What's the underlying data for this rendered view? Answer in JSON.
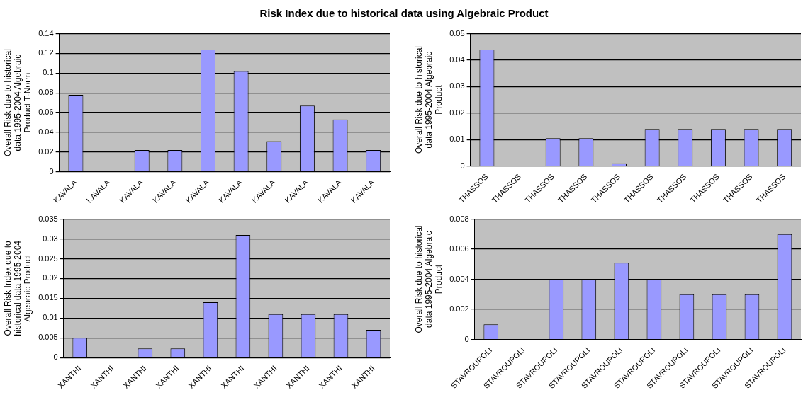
{
  "chart_data": [
    {
      "type": "bar",
      "title": "Risk Index due to historical data using Algebraic Product",
      "ylabel": "Overall Risk due to historical data 1995-2004 Algebraic Product T-Norm",
      "categories": [
        "KAVALA",
        "KAVALA",
        "KAVALA",
        "KAVALA",
        "KAVALA",
        "KAVALA",
        "KAVALA",
        "KAVALA",
        "KAVALA",
        "KAVALA"
      ],
      "values": [
        0.078,
        0,
        0.022,
        0.022,
        0.124,
        0.102,
        0.031,
        0.067,
        0.053,
        0.022
      ],
      "color": "#9999ff",
      "ylim": [
        0,
        0.14
      ],
      "yticks": [
        0,
        0.02,
        0.04,
        0.06,
        0.08,
        0.1,
        0.12,
        0.14
      ],
      "grid": "y"
    },
    {
      "type": "bar",
      "ylabel": "Overall Risk due to historical data 1995-2004 Algebraic Product",
      "categories": [
        "THASSOS",
        "THASSOS",
        "THASSOS",
        "THASSOS",
        "THASSOS",
        "THASSOS",
        "THASSOS",
        "THASSOS",
        "THASSOS",
        "THASSOS"
      ],
      "values": [
        0.044,
        0,
        0.0105,
        0.0105,
        0.001,
        0.014,
        0.014,
        0.014,
        0.014,
        0.014
      ],
      "color": "#9999ff",
      "ylim": [
        0,
        0.05
      ],
      "yticks": [
        0,
        0.01,
        0.02,
        0.03,
        0.04,
        0.05
      ],
      "grid": "y"
    },
    {
      "type": "bar",
      "ylabel": "Overall Risk Index due to historical data 1995-2004 Algebraic Product",
      "categories": [
        "XANTHI",
        "XANTHI",
        "XANTHI",
        "XANTHI",
        "XANTHI",
        "XANTHI",
        "XANTHI",
        "XANTHI",
        "XANTHI",
        "XANTHI"
      ],
      "values": [
        0.005,
        0,
        0.0023,
        0.0023,
        0.014,
        0.031,
        0.011,
        0.011,
        0.011,
        0.007
      ],
      "color": "#9999ff",
      "ylim": [
        0,
        0.035
      ],
      "yticks": [
        0,
        0.005,
        0.01,
        0.015,
        0.02,
        0.025,
        0.03,
        0.035
      ],
      "grid": "y"
    },
    {
      "type": "bar",
      "ylabel": "Overall Risk due to historical data 1995-2004 Algebraic Product",
      "categories": [
        "STAVROUPOLI",
        "STAVROUPOLI",
        "STAVROUPOLI",
        "STAVROUPOLI",
        "STAVROUPOLI",
        "STAVROUPOLI",
        "STAVROUPOLI",
        "STAVROUPOLI",
        "STAVROUPOLI",
        "STAVROUPOLI"
      ],
      "values": [
        0.001,
        0,
        0.004,
        0.004,
        0.0051,
        0.004,
        0.003,
        0.003,
        0.003,
        0.007
      ],
      "color": "#9999ff",
      "ylim": [
        0,
        0.008
      ],
      "yticks": [
        0,
        0.002,
        0.004,
        0.006,
        0.008
      ],
      "grid": "y"
    }
  ]
}
